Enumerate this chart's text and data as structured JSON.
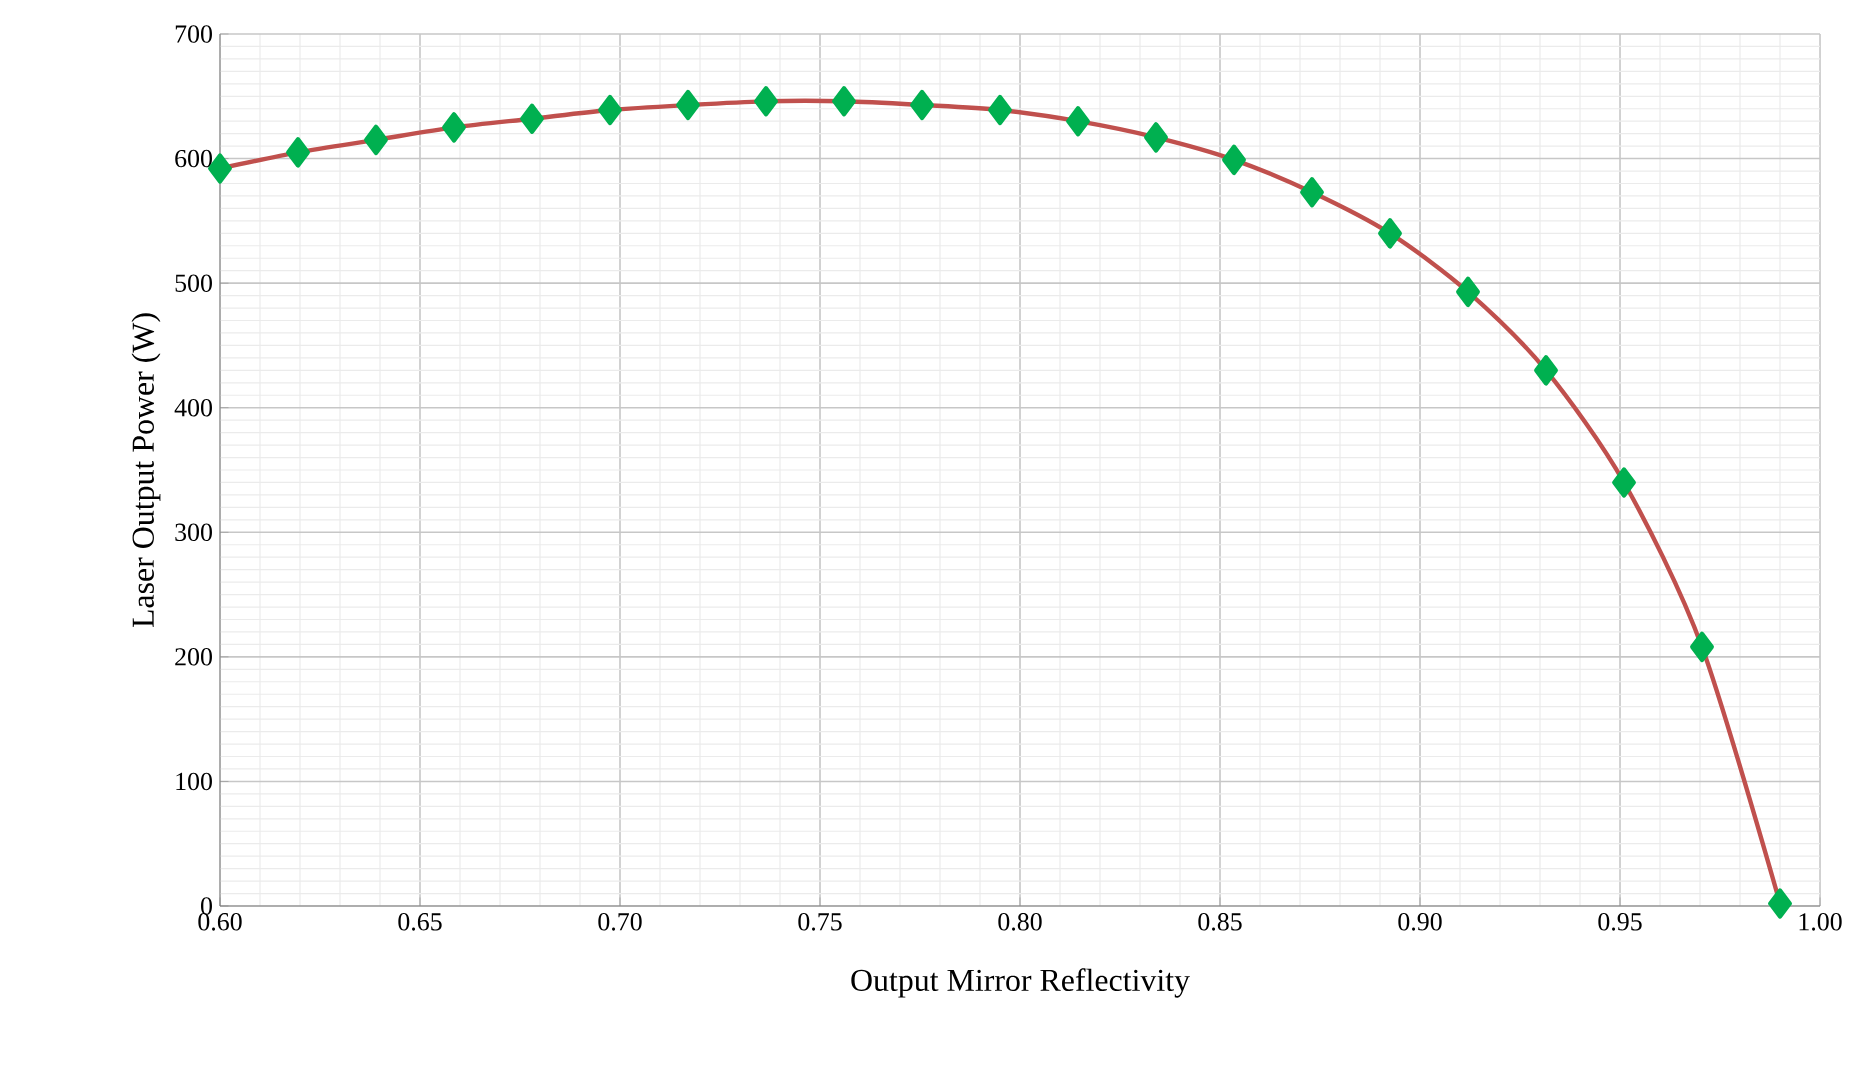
{
  "chart_data": {
    "type": "line",
    "xlabel": "Output Mirror Reflectivity",
    "ylabel": "Laser Output Power (W)",
    "x": [
      0.6,
      0.6195,
      0.639,
      0.6585,
      0.678,
      0.6975,
      0.717,
      0.7365,
      0.756,
      0.7755,
      0.795,
      0.8145,
      0.834,
      0.8535,
      0.873,
      0.8925,
      0.912,
      0.9315,
      0.951,
      0.9705,
      0.99
    ],
    "series": [
      {
        "color": "#c0504d",
        "colors": [
          "#00b050",
          "#00b050",
          "#00b050",
          "#00b050",
          "#00b050",
          "#00b050",
          "#00b050",
          "#00b050",
          "#00b050",
          "#00b050",
          "#00b050",
          "#00b050",
          "#00b050",
          "#00b050",
          "#00b050",
          "#00b050",
          "#00b050",
          "#00b050",
          "#00b050",
          "#00b050",
          "#00b050"
        ],
        "values": [
          592,
          605,
          615,
          625,
          632,
          639,
          643,
          646,
          646,
          643,
          639,
          630,
          617,
          599,
          573,
          540,
          493,
          430,
          340,
          208,
          2
        ]
      }
    ],
    "marker": "diamond",
    "line_style": "solid",
    "grid": true,
    "xlim": [
      0.6,
      1.0
    ],
    "xticks": [
      {
        "value": 0.6,
        "label": "0.60"
      },
      {
        "value": 0.65,
        "label": "0.65"
      },
      {
        "value": 0.7,
        "label": "0.70"
      },
      {
        "value": 0.75,
        "label": "0.75"
      },
      {
        "value": 0.8,
        "label": "0.80"
      },
      {
        "value": 0.85,
        "label": "0.85"
      },
      {
        "value": 0.9,
        "label": "0.90"
      },
      {
        "value": 0.95,
        "label": "0.95"
      },
      {
        "value": 1.0,
        "label": "1.00"
      }
    ],
    "ylim": [
      0,
      700
    ],
    "yticks": [
      0,
      100,
      200,
      300,
      400,
      500,
      600,
      700
    ]
  }
}
